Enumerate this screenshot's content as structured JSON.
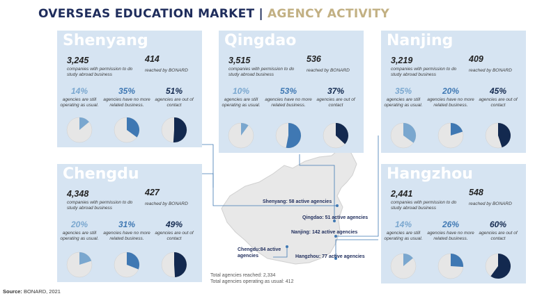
{
  "header": {
    "title_part1": "OVERSEAS EDUCATION MARKET",
    "separator": "|",
    "title_part2": "AGENCY ACTIVITY"
  },
  "colors": {
    "card": "#d6e4f2",
    "light_blue": "#7aa7cf",
    "mid_blue": "#3f78b3",
    "dark_navy": "#13294f",
    "remainder": "#e6e6e6"
  },
  "common": {
    "permission_label": "companies with permission to do study abroad business",
    "reached_label": "reached by BONARD",
    "operating_label": "agencies are still operating as usual.",
    "no_business_label": "agencies have no more related business.",
    "out_of_contact_label": "agencies are out of contact"
  },
  "chart_data": {
    "type": "pie",
    "cities": [
      {
        "name": "Shenyang",
        "companies": "3,245",
        "reached": "414",
        "operating": "14%",
        "no_business": "35%",
        "out_of_contact": "51%",
        "values": {
          "operating": 14,
          "no_business": 35,
          "out_of_contact": 51
        }
      },
      {
        "name": "Qingdao",
        "companies": "3,515",
        "reached": "536",
        "operating": "10%",
        "no_business": "53%",
        "out_of_contact": "37%",
        "values": {
          "operating": 10,
          "no_business": 53,
          "out_of_contact": 37
        }
      },
      {
        "name": "Nanjing",
        "companies": "3,219",
        "reached": "409",
        "operating": "35%",
        "no_business": "20%",
        "out_of_contact": "45%",
        "values": {
          "operating": 35,
          "no_business": 20,
          "out_of_contact": 45
        }
      },
      {
        "name": "Chengdu",
        "companies": "4,348",
        "reached": "427",
        "operating": "20%",
        "no_business": "31%",
        "out_of_contact": "49%",
        "values": {
          "operating": 20,
          "no_business": 31,
          "out_of_contact": 49
        }
      },
      {
        "name": "Hangzhou",
        "companies": "2,441",
        "reached": "548",
        "operating": "14%",
        "no_business": "26%",
        "out_of_contact": "60%",
        "values": {
          "operating": 14,
          "no_business": 26,
          "out_of_contact": 60
        }
      }
    ]
  },
  "map": {
    "labels": {
      "shenyang": "Shenyang: 58 active agencies",
      "qingdao": "Qingdao: 51 active agencies",
      "nanjing": "Nanjing: 142 active agencies",
      "hangzhou": "Hangzhou: 77 active agencies",
      "chengdu": "Chengdu:84 active agencies"
    },
    "total_reached": "Total agencies reached: 2,334",
    "total_operating": "Total agencies operating as usual: 412"
  },
  "footer": {
    "source_label": "Source:",
    "source": "BONARD, 2021"
  }
}
